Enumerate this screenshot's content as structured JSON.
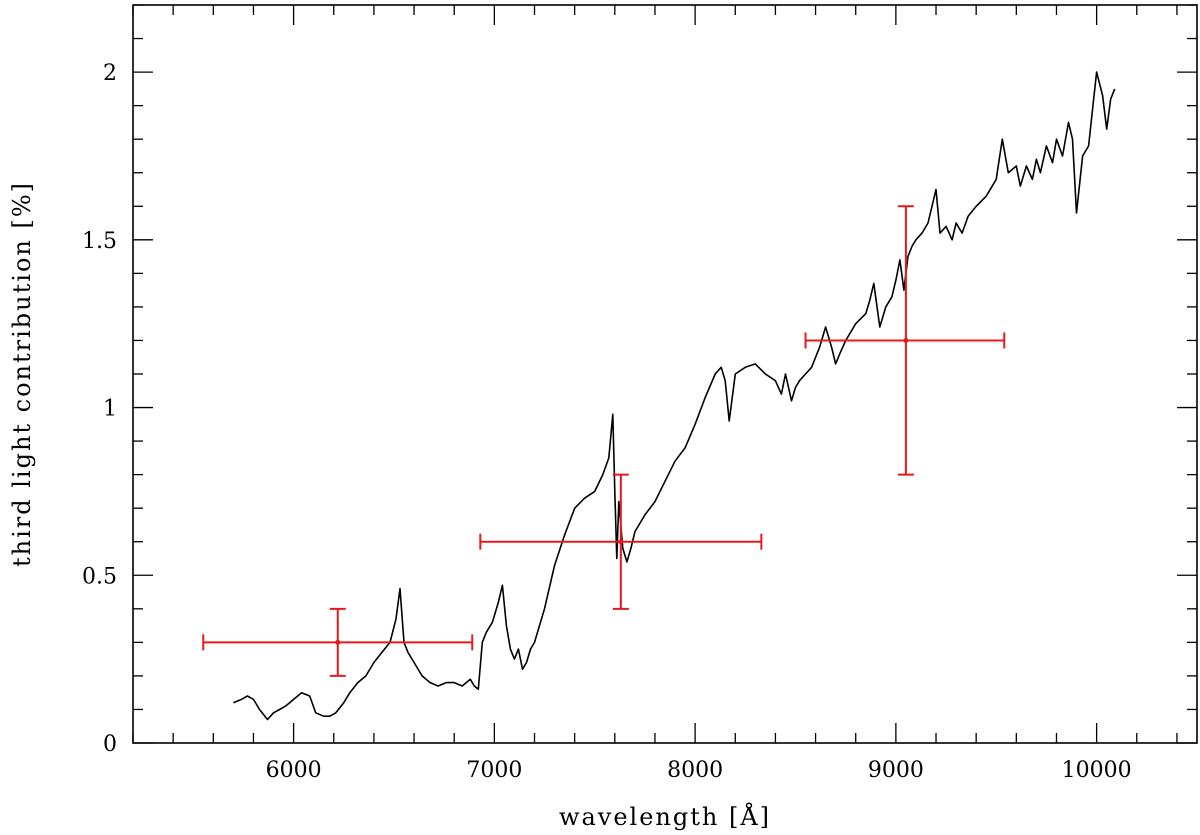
{
  "chart_data": {
    "type": "line",
    "xlabel": "wavelength [Å]",
    "ylabel": "third light contribution [%]",
    "xlim": [
      5200,
      10500
    ],
    "ylim": [
      0,
      2.2
    ],
    "x_ticks": [
      6000,
      7000,
      8000,
      9000,
      10000
    ],
    "x_tick_labels": [
      "6000",
      "7000",
      "8000",
      "9000",
      "10000"
    ],
    "y_ticks": [
      0,
      0.5,
      1,
      1.5,
      2
    ],
    "y_tick_labels": [
      "0",
      "0.5",
      "1",
      "1.5",
      "2"
    ],
    "x_minor_step": 200,
    "y_minor_step": 0.1,
    "grid": false,
    "series": [
      {
        "color": "#000000",
        "x": [
          5700,
          5740,
          5770,
          5800,
          5830,
          5870,
          5900,
          5930,
          5960,
          6000,
          6040,
          6080,
          6110,
          6150,
          6180,
          6210,
          6250,
          6280,
          6320,
          6360,
          6400,
          6440,
          6480,
          6510,
          6530,
          6550,
          6570,
          6600,
          6640,
          6680,
          6720,
          6760,
          6800,
          6840,
          6880,
          6900,
          6920,
          6940,
          6960,
          6990,
          7020,
          7040,
          7060,
          7080,
          7100,
          7120,
          7140,
          7160,
          7180,
          7200,
          7250,
          7300,
          7350,
          7400,
          7450,
          7500,
          7540,
          7570,
          7590,
          7600,
          7610,
          7620,
          7640,
          7660,
          7680,
          7700,
          7750,
          7800,
          7850,
          7900,
          7950,
          8000,
          8050,
          8100,
          8130,
          8150,
          8170,
          8200,
          8250,
          8300,
          8350,
          8400,
          8430,
          8450,
          8480,
          8500,
          8520,
          8550,
          8580,
          8600,
          8620,
          8650,
          8680,
          8700,
          8720,
          8750,
          8800,
          8850,
          8870,
          8890,
          8920,
          8950,
          8980,
          9000,
          9020,
          9040,
          9060,
          9080,
          9100,
          9130,
          9160,
          9200,
          9220,
          9250,
          9280,
          9300,
          9330,
          9360,
          9400,
          9450,
          9500,
          9530,
          9560,
          9600,
          9620,
          9650,
          9680,
          9700,
          9720,
          9750,
          9780,
          9800,
          9830,
          9860,
          9880,
          9900,
          9930,
          9960,
          10000,
          10030,
          10050,
          10070,
          10090
        ],
        "y": [
          0.12,
          0.13,
          0.14,
          0.13,
          0.1,
          0.07,
          0.09,
          0.1,
          0.11,
          0.13,
          0.15,
          0.14,
          0.09,
          0.08,
          0.08,
          0.09,
          0.12,
          0.15,
          0.18,
          0.2,
          0.24,
          0.27,
          0.3,
          0.37,
          0.46,
          0.3,
          0.27,
          0.24,
          0.2,
          0.18,
          0.17,
          0.18,
          0.18,
          0.17,
          0.19,
          0.17,
          0.16,
          0.3,
          0.33,
          0.36,
          0.42,
          0.47,
          0.35,
          0.28,
          0.25,
          0.28,
          0.22,
          0.24,
          0.28,
          0.3,
          0.4,
          0.53,
          0.62,
          0.7,
          0.73,
          0.75,
          0.8,
          0.85,
          0.98,
          0.75,
          0.55,
          0.72,
          0.58,
          0.54,
          0.58,
          0.63,
          0.68,
          0.72,
          0.78,
          0.84,
          0.88,
          0.95,
          1.03,
          1.1,
          1.12,
          1.08,
          0.96,
          1.1,
          1.12,
          1.13,
          1.1,
          1.08,
          1.04,
          1.1,
          1.02,
          1.06,
          1.08,
          1.1,
          1.12,
          1.15,
          1.18,
          1.24,
          1.18,
          1.13,
          1.16,
          1.2,
          1.25,
          1.28,
          1.32,
          1.37,
          1.24,
          1.3,
          1.33,
          1.38,
          1.44,
          1.35,
          1.45,
          1.48,
          1.5,
          1.52,
          1.55,
          1.65,
          1.52,
          1.54,
          1.5,
          1.55,
          1.52,
          1.57,
          1.6,
          1.63,
          1.68,
          1.8,
          1.7,
          1.72,
          1.66,
          1.72,
          1.68,
          1.74,
          1.7,
          1.78,
          1.73,
          1.8,
          1.75,
          1.85,
          1.8,
          1.58,
          1.75,
          1.78,
          2.0,
          1.93,
          1.83,
          1.92,
          1.95
        ]
      }
    ],
    "error_points": [
      {
        "x": 6220,
        "y": 0.3,
        "xerr": [
          5550,
          6890
        ],
        "yerr": [
          0.2,
          0.4
        ]
      },
      {
        "x": 7630,
        "y": 0.6,
        "xerr": [
          6930,
          8330
        ],
        "yerr": [
          0.4,
          0.8
        ]
      },
      {
        "x": 9050,
        "y": 1.2,
        "xerr": [
          8550,
          9540
        ],
        "yerr": [
          0.8,
          1.6
        ]
      }
    ],
    "error_color": "#e41a1c"
  }
}
